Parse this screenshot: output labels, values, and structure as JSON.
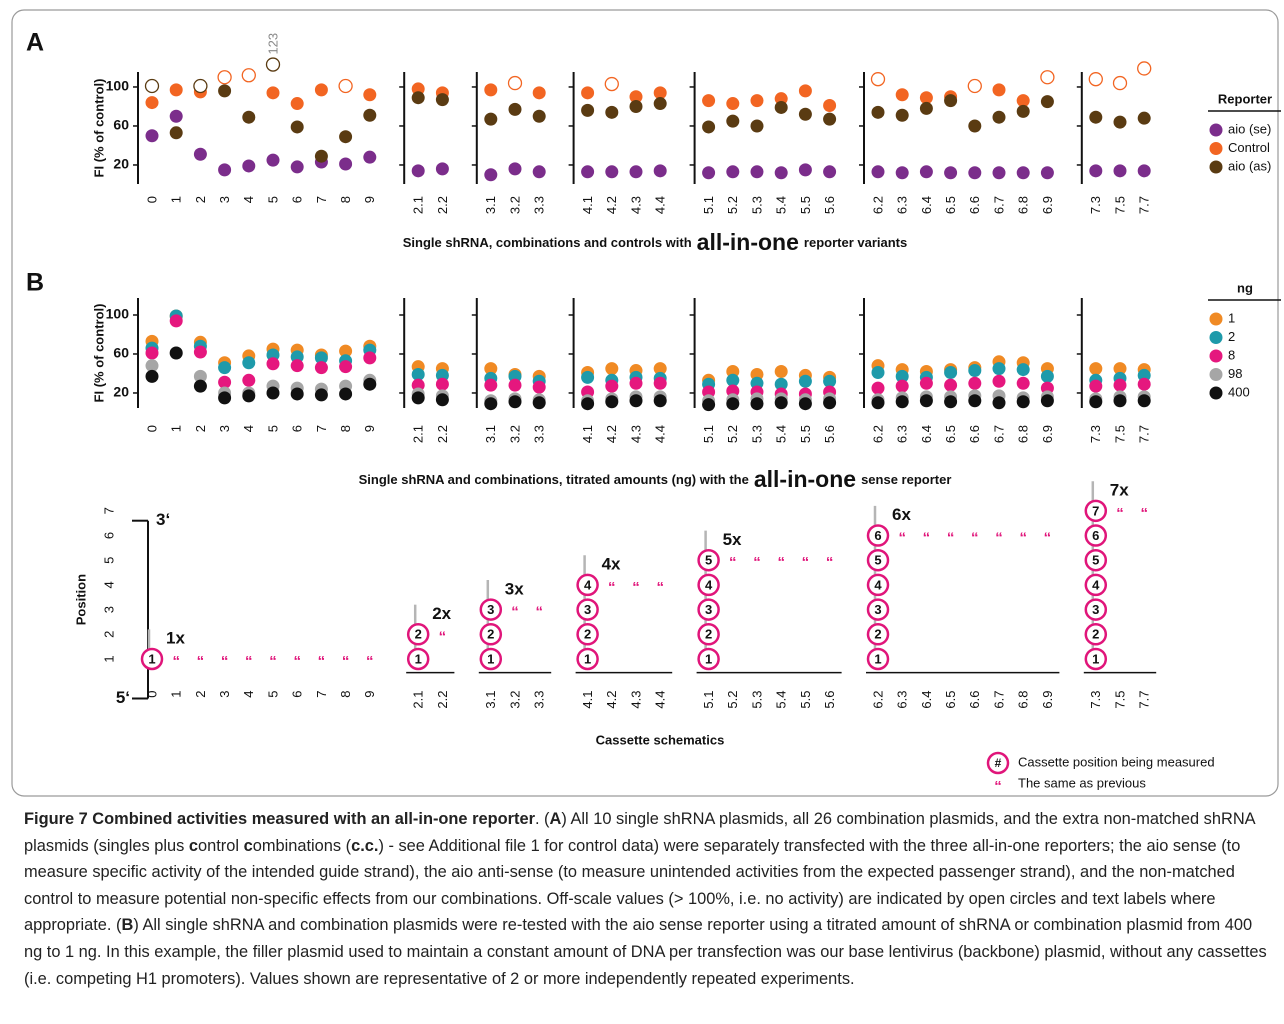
{
  "panel_labels": [
    "A",
    "B"
  ],
  "chart_data": [
    {
      "type": "scatter",
      "ylabel": "FI (% of control)",
      "xlabel": [
        "Single shRNA, combinations and controls with",
        "all-in-one",
        "reporter variants"
      ],
      "categories": [
        "0",
        "1",
        "2",
        "3",
        "4",
        "5",
        "6",
        "7",
        "8",
        "9",
        "2.1",
        "2.2",
        "3.1",
        "3.2",
        "3.3",
        "4.1",
        "4.2",
        "4.3",
        "4.4",
        "5.1",
        "5.2",
        "5.3",
        "5.4",
        "5.5",
        "5.6",
        "6.2",
        "6.3",
        "6.4",
        "6.5",
        "6.6",
        "6.7",
        "6.8",
        "6.9",
        "7.3",
        "7.5",
        "7.7"
      ],
      "ylim": [
        5,
        125
      ],
      "yticks": [
        20,
        60,
        100
      ],
      "legend_title": "Reporter",
      "series": [
        {
          "name": "aio (se)",
          "color": "#7b2d8b",
          "values": [
            50,
            70,
            31,
            15,
            19,
            25,
            18,
            23,
            21,
            28,
            14,
            16,
            10,
            16,
            13,
            13,
            13,
            13,
            14,
            12,
            13,
            13,
            12,
            15,
            13,
            13,
            12,
            13,
            12,
            12,
            12,
            12,
            12,
            14,
            14,
            14
          ]
        },
        {
          "name": "Control",
          "color": "#f26522",
          "values": [
            84,
            97,
            95,
            110,
            112,
            94,
            83,
            97,
            101,
            92,
            98,
            94,
            97,
            104,
            94,
            94,
            103,
            90,
            94,
            86,
            83,
            86,
            88,
            96,
            81,
            108,
            92,
            89,
            90,
            101,
            97,
            86,
            110,
            108,
            104,
            119
          ]
        },
        {
          "name": "aio (as)",
          "color": "#5a3b12",
          "values": [
            101,
            53,
            101,
            96,
            69,
            123,
            59,
            29,
            49,
            71,
            89,
            87,
            67,
            77,
            70,
            76,
            74,
            80,
            83,
            59,
            65,
            60,
            79,
            72,
            67,
            74,
            71,
            78,
            86,
            60,
            69,
            75,
            85,
            69,
            64,
            68
          ],
          "value_labels": [
            null,
            null,
            null,
            null,
            null,
            "123",
            null,
            null,
            null,
            null,
            null,
            null,
            null,
            null,
            null,
            null,
            null,
            null,
            null,
            null,
            null,
            null,
            null,
            null,
            null,
            null,
            null,
            null,
            null,
            null,
            null,
            null,
            null,
            null,
            null,
            null
          ]
        }
      ]
    },
    {
      "type": "scatter",
      "ylabel": "FI (% of control)",
      "xlabel": [
        "Single shRNA and combinations, titrated amounts (ng) with the",
        "all-in-one",
        "sense reporter"
      ],
      "categories": [
        "0",
        "1",
        "2",
        "3",
        "4",
        "5",
        "6",
        "7",
        "8",
        "9",
        "2.1",
        "2.2",
        "3.1",
        "3.2",
        "3.3",
        "4.1",
        "4.2",
        "4.3",
        "4.4",
        "5.1",
        "5.2",
        "5.3",
        "5.4",
        "5.5",
        "5.6",
        "6.2",
        "6.3",
        "6.4",
        "6.5",
        "6.6",
        "6.7",
        "6.8",
        "6.9",
        "7.3",
        "7.5",
        "7.7"
      ],
      "ylim": [
        5,
        120
      ],
      "yticks": [
        20,
        60,
        100
      ],
      "legend_title": "ng",
      "series": [
        {
          "name": "1",
          "color": "#f08a24",
          "values": [
            73,
            99,
            72,
            51,
            58,
            65,
            64,
            59,
            63,
            68,
            47,
            45,
            45,
            39,
            37,
            41,
            45,
            43,
            45,
            33,
            42,
            39,
            42,
            38,
            36,
            48,
            44,
            42,
            44,
            46,
            52,
            51,
            45,
            45,
            45,
            44
          ]
        },
        {
          "name": "2",
          "color": "#1e9aaa",
          "values": [
            66,
            99,
            68,
            46,
            51,
            59,
            57,
            56,
            53,
            64,
            39,
            38,
            35,
            37,
            32,
            36,
            33,
            36,
            35,
            29,
            33,
            30,
            29,
            32,
            32,
            41,
            37,
            36,
            41,
            43,
            45,
            44,
            37,
            33,
            35,
            38
          ]
        },
        {
          "name": "8",
          "color": "#e5177e",
          "values": [
            61,
            94,
            62,
            31,
            33,
            50,
            48,
            46,
            47,
            56,
            28,
            29,
            28,
            28,
            26,
            21,
            27,
            30,
            30,
            21,
            22,
            21,
            19,
            19,
            21,
            25,
            27,
            30,
            28,
            30,
            32,
            30,
            25,
            27,
            28,
            29
          ]
        },
        {
          "name": "98",
          "color": "#a6a6a6",
          "values": [
            48,
            61,
            37,
            20,
            20,
            27,
            25,
            24,
            27,
            33,
            19,
            17,
            12,
            14,
            13,
            12,
            14,
            16,
            16,
            12,
            13,
            14,
            14,
            13,
            14,
            13,
            15,
            16,
            16,
            17,
            17,
            15,
            16,
            14,
            16,
            16
          ]
        },
        {
          "name": "400",
          "color": "#111111",
          "values": [
            37,
            61,
            27,
            15,
            17,
            20,
            19,
            18,
            19,
            29,
            15,
            13,
            9,
            11,
            10,
            9,
            11,
            12,
            12,
            8,
            9,
            9,
            10,
            9,
            10,
            10,
            11,
            12,
            11,
            12,
            10,
            11,
            12,
            11,
            12,
            12
          ]
        }
      ]
    },
    {
      "type": "schematic",
      "ylabel": "Position",
      "xlabel": "Cassette schematics",
      "top_label": "3‘",
      "bottom_label": "5‘",
      "categories": [
        "0",
        "1",
        "2",
        "3",
        "4",
        "5",
        "6",
        "7",
        "8",
        "9",
        "2.1",
        "2.2",
        "3.1",
        "3.2",
        "3.3",
        "4.1",
        "4.2",
        "4.3",
        "4.4",
        "5.1",
        "5.2",
        "5.3",
        "5.4",
        "5.5",
        "5.6",
        "6.2",
        "6.3",
        "6.4",
        "6.5",
        "6.6",
        "6.7",
        "6.8",
        "6.9",
        "7.3",
        "7.5",
        "7.7"
      ],
      "values": [
        1,
        1,
        1,
        1,
        1,
        1,
        1,
        1,
        1,
        1,
        2,
        2,
        3,
        3,
        3,
        4,
        4,
        4,
        4,
        5,
        5,
        5,
        5,
        5,
        5,
        6,
        6,
        6,
        6,
        6,
        6,
        6,
        6,
        7,
        7,
        7
      ],
      "group_labels": [
        "1x",
        "2x",
        "3x",
        "4x",
        "5x",
        "6x",
        "7x"
      ],
      "ylim": [
        -0.6,
        6.6
      ],
      "yticks": [
        1,
        2,
        3,
        4,
        5,
        6,
        7
      ],
      "same_mark": "“",
      "color": "#e0157a",
      "legend": [
        {
          "symbol": "#",
          "label": "Cassette position being measured"
        },
        {
          "symbol": "“",
          "label": "The same as previous"
        }
      ]
    }
  ],
  "caption": [
    {
      "text": "Figure 7 Combined activities measured with an all-in-one reporter",
      "bold": true
    },
    {
      "text": ". (",
      "bold": false
    },
    {
      "text": "A",
      "bold": true
    },
    {
      "text": ") All 10 single shRNA plasmids, all 26 combination plasmids, and the extra non-matched shRNA plasmids (singles plus ",
      "bold": false
    },
    {
      "text": "c",
      "bold": true
    },
    {
      "text": "ontrol ",
      "bold": false
    },
    {
      "text": "c",
      "bold": true
    },
    {
      "text": "ombinations (",
      "bold": false
    },
    {
      "text": "c.c.",
      "bold": true
    },
    {
      "text": ") - see Additional file 1 for control data) were separately transfected with the three all-in-one reporters; the aio sense (to measure specific activity of the intended guide strand), the aio anti-sense (to measure unintended activities from the expected passenger strand), and the non-matched control to measure potential non-specific effects from our combinations. Off-scale values (> 100%, i.e. no activity) are indicated by open circles and text labels where appropriate. (",
      "bold": false
    },
    {
      "text": "B",
      "bold": true
    },
    {
      "text": ") All single shRNA and combination plasmids were re-tested with the aio sense reporter using a titrated amount of shRNA or combination plasmid from 400 ng to 1 ng. In this example, the filler plasmid used to maintain a constant amount of DNA per transfection was our base lentivirus (backbone) plasmid, without any cassettes (i.e. competing H1 promoters). Values shown are representative of 2 or more independently repeated experiments.",
      "bold": false
    }
  ]
}
